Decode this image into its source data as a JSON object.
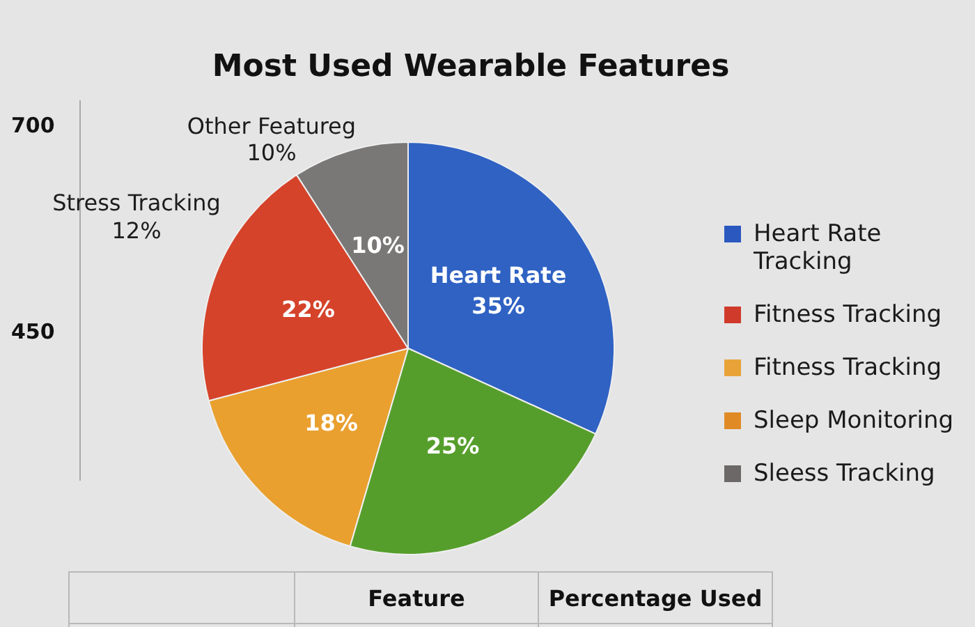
{
  "chart_data": [
    {
      "type": "pie",
      "title": "Most Used Wearable Features",
      "categories": [
        "Heart Rate",
        null,
        null,
        null,
        null
      ],
      "values": [
        35,
        25,
        18,
        22,
        10
      ],
      "colors": [
        "#2f62c3",
        "#569e2c",
        "#e9a02f",
        "#d5432a",
        "#7a7777"
      ],
      "value_labels": [
        "35%",
        "25%",
        "18%",
        "22%",
        "10%"
      ],
      "annotations": [
        "Other Featureg 10%",
        "Stress Tracking 12%",
        "700",
        "450",
        "Feature",
        "Percentage Used"
      ]
    },
    {
      "type": "other",
      "categories": [
        "Heart Rate Tracking",
        "Fitness Tracking",
        "Fitness Tracking",
        "Sleep Monitoring",
        "Sleess Tracking"
      ],
      "colors": [
        "#2a58bf",
        "#d03a2b",
        "#e8a338",
        "#e08a26",
        "#6c6868"
      ]
    }
  ]
}
